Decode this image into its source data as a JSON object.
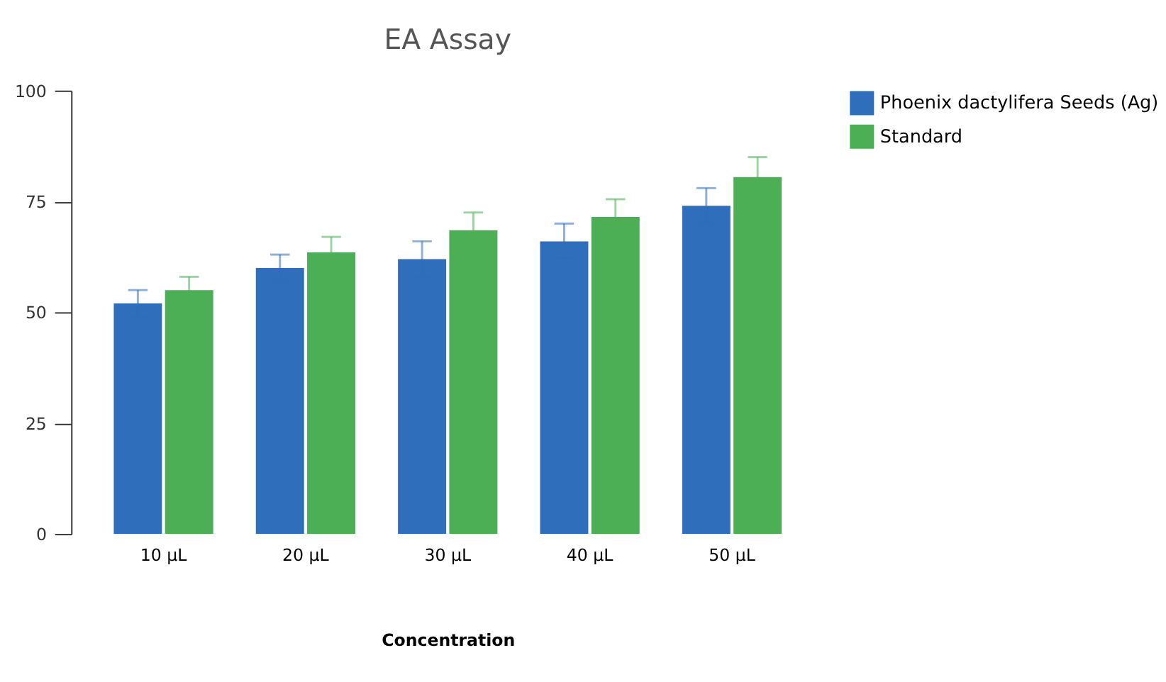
{
  "chart_data": {
    "type": "bar",
    "title": "EA Assay",
    "xlabel": "Concentration",
    "categories": [
      "10 µL",
      "20 µL",
      "30 µL",
      "40 µL",
      "50 µL"
    ],
    "series": [
      {
        "name": "Phoenix dactylifera Seeds (Ag)",
        "color": "#2f6ebb",
        "values": [
          52,
          60,
          62,
          66,
          74
        ],
        "errors": [
          3,
          3,
          4,
          4,
          4
        ]
      },
      {
        "name": "Standard",
        "color": "#4caf56",
        "values": [
          55,
          63.5,
          68.5,
          71.5,
          80.5
        ],
        "errors": [
          3,
          3.5,
          4,
          4,
          4.5
        ]
      }
    ],
    "ylim": [
      0,
      100
    ],
    "yticks": [
      0,
      25,
      50,
      75,
      100
    ],
    "grid": false,
    "legend": "top right"
  }
}
